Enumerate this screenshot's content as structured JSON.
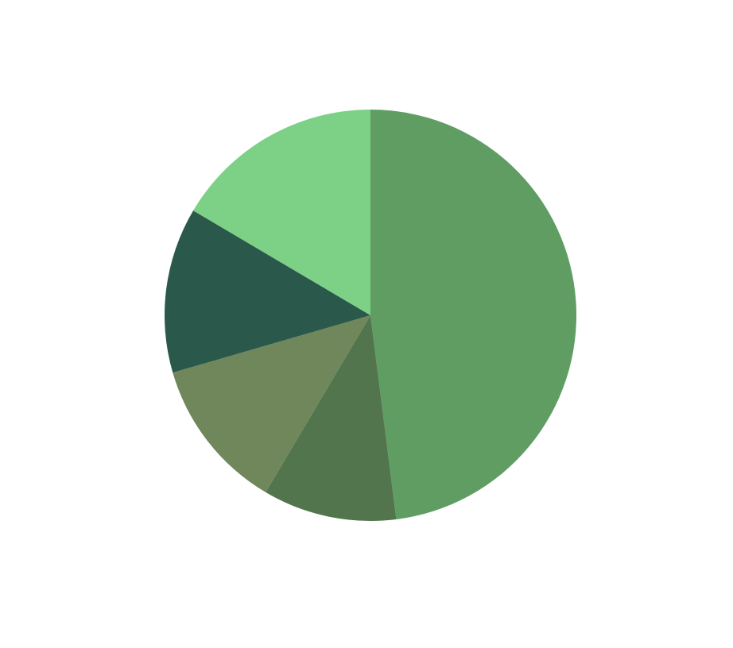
{
  "chart_data": {
    "type": "pie",
    "start_angle_deg": 90,
    "direction": "clockwise",
    "slices": [
      {
        "value": 48.0,
        "color": "#5f9d63"
      },
      {
        "value": 10.5,
        "color": "#52754d"
      },
      {
        "value": 12.0,
        "color": "#6f875b"
      },
      {
        "value": 13.0,
        "color": "#2a594b"
      },
      {
        "value": 16.5,
        "color": "#7dd186"
      }
    ]
  }
}
